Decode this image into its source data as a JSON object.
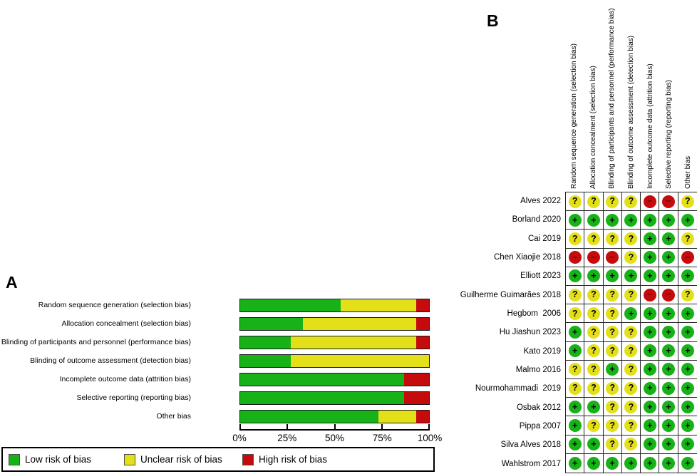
{
  "colors": {
    "low": "#17b217",
    "unclear": "#e3e01a",
    "high": "#c50b0b",
    "symbol": "#000000",
    "symbol_high": "#7d0000",
    "grid_line": "#262626"
  },
  "panel_a": {
    "label": "A",
    "axis_ticks": [
      "0%",
      "25%",
      "50%",
      "75%",
      "100%"
    ],
    "legend": [
      {
        "label": "Low risk of bias",
        "key": "low"
      },
      {
        "label": "Unclear risk of bias",
        "key": "unclear"
      },
      {
        "label": "High risk of bias",
        "key": "high"
      }
    ]
  },
  "panel_b": {
    "label": "B"
  },
  "chart_data": [
    {
      "type": "bar",
      "orientation": "horizontal_stacked",
      "title": "Risk of bias graph",
      "categories": [
        "Random sequence generation (selection bias)",
        "Allocation concealment (selection bias)",
        "Blinding of participants and personnel (performance bias)",
        "Blinding of outcome assessment (detection bias)",
        "Incomplete outcome data (attrition bias)",
        "Selective reporting (reporting bias)",
        "Other bias"
      ],
      "series": [
        {
          "name": "Low risk of bias",
          "key": "low",
          "values": [
            53.3,
            33.3,
            26.7,
            26.7,
            86.7,
            86.7,
            73.3
          ]
        },
        {
          "name": "Unclear risk of bias",
          "key": "unclear",
          "values": [
            40.0,
            60.0,
            66.7,
            73.3,
            0,
            0,
            20.0
          ]
        },
        {
          "name": "High risk of bias",
          "key": "high",
          "values": [
            6.7,
            6.7,
            6.7,
            0,
            13.3,
            13.3,
            6.7
          ]
        }
      ],
      "xlim": [
        0,
        100
      ],
      "x_ticks": [
        "0%",
        "25%",
        "50%",
        "75%",
        "100%"
      ],
      "legend_position": "bottom",
      "grid": false
    },
    {
      "type": "table",
      "title": "Risk of bias summary",
      "columns": [
        "Random sequence generation (selection bias)",
        "Allocation concealment (selection bias)",
        "Blinding of participants and personnel (performance bias)",
        "Blinding of outcome assessment (detection bias)",
        "Incomplete outcome data (attrition bias)",
        "Selective reporting (reporting bias)",
        "Other bias"
      ],
      "symbol_legend": {
        "+": "low risk",
        "?": "unclear risk",
        "-": "high risk"
      },
      "rows": [
        {
          "study": "Alves 2022",
          "judgements": [
            "?",
            "?",
            "?",
            "?",
            "-",
            "-",
            "?"
          ]
        },
        {
          "study": "Borland 2020",
          "judgements": [
            "+",
            "+",
            "+",
            "+",
            "+",
            "+",
            "+"
          ]
        },
        {
          "study": "Cai 2019",
          "judgements": [
            "?",
            "?",
            "?",
            "?",
            "+",
            "+",
            "?"
          ]
        },
        {
          "study": "Chen Xiaojie 2018",
          "judgements": [
            "-",
            "-",
            "-",
            "?",
            "+",
            "+",
            "-"
          ]
        },
        {
          "study": "Elliott 2023",
          "judgements": [
            "+",
            "+",
            "+",
            "+",
            "+",
            "+",
            "+"
          ]
        },
        {
          "study": "Guilherme Guimarães 2018",
          "judgements": [
            "?",
            "?",
            "?",
            "?",
            "-",
            "-",
            "?"
          ]
        },
        {
          "study": "Hegbom  2006",
          "judgements": [
            "?",
            "?",
            "?",
            "+",
            "+",
            "+",
            "+"
          ]
        },
        {
          "study": "Hu Jiashun 2023",
          "judgements": [
            "+",
            "?",
            "?",
            "?",
            "+",
            "+",
            "+"
          ]
        },
        {
          "study": "Kato 2019",
          "judgements": [
            "+",
            "?",
            "?",
            "?",
            "+",
            "+",
            "+"
          ]
        },
        {
          "study": "Malmo 2016",
          "judgements": [
            "?",
            "?",
            "+",
            "?",
            "+",
            "+",
            "+"
          ]
        },
        {
          "study": "Nourmohammadi  2019",
          "judgements": [
            "?",
            "?",
            "?",
            "?",
            "+",
            "+",
            "+"
          ]
        },
        {
          "study": "Osbak 2012",
          "judgements": [
            "+",
            "+",
            "?",
            "?",
            "+",
            "+",
            "+"
          ]
        },
        {
          "study": "Pippa 2007",
          "judgements": [
            "+",
            "?",
            "?",
            "?",
            "+",
            "+",
            "+"
          ]
        },
        {
          "study": "Silva Alves 2018",
          "judgements": [
            "+",
            "+",
            "?",
            "?",
            "+",
            "+",
            "+"
          ]
        },
        {
          "study": "Wahlstrom 2017",
          "judgements": [
            "+",
            "+",
            "+",
            "+",
            "+",
            "+",
            "+"
          ]
        }
      ]
    }
  ]
}
